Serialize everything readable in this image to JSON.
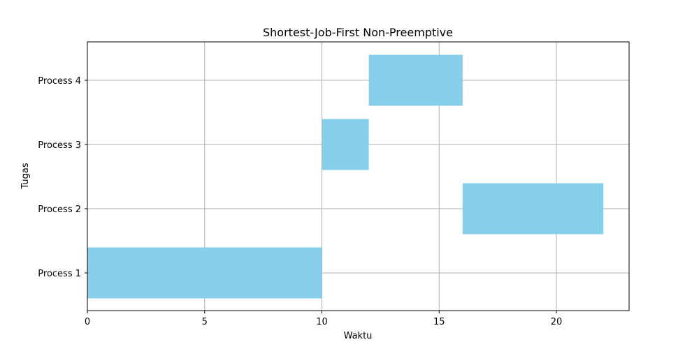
{
  "chart_data": {
    "type": "bar",
    "orientation": "horizontal",
    "title": "Shortest-Job-First Non-Preemptive",
    "xlabel": "Waktu",
    "ylabel": "Tugas",
    "xlim": [
      0,
      23.1
    ],
    "xticks": [
      0,
      5,
      10,
      15,
      20
    ],
    "categories": [
      "Process 1",
      "Process 2",
      "Process 3",
      "Process 4"
    ],
    "bars": [
      {
        "task": "Process 1",
        "start": 0,
        "duration": 10
      },
      {
        "task": "Process 2",
        "start": 16,
        "duration": 6
      },
      {
        "task": "Process 3",
        "start": 10,
        "duration": 2
      },
      {
        "task": "Process 4",
        "start": 12,
        "duration": 4
      }
    ],
    "bar_color": "#87ceeb",
    "grid": true,
    "legend": "none"
  }
}
